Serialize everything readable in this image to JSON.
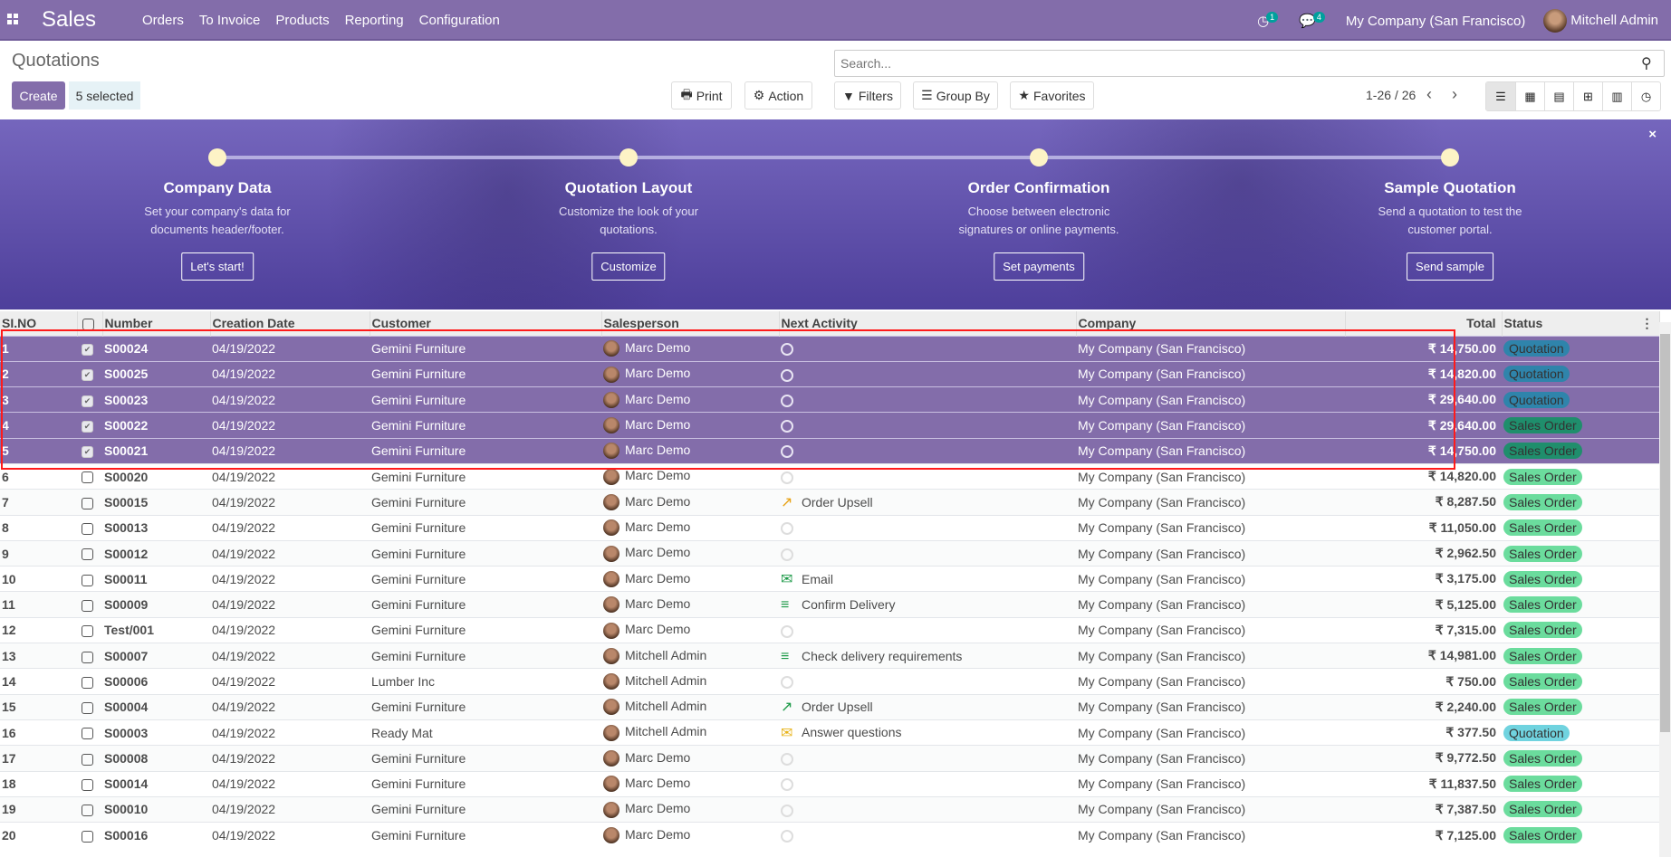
{
  "nav": {
    "app": "Sales",
    "menu": [
      "Orders",
      "To Invoice",
      "Products",
      "Reporting",
      "Configuration"
    ],
    "activity_count": "1",
    "message_count": "4",
    "company": "My Company (San Francisco)",
    "user": "Mitchell Admin",
    "color": "#836daa"
  },
  "control": {
    "title": "Quotations",
    "create": "Create",
    "selected": "5 selected",
    "print": "Print",
    "action": "Action",
    "search_placeholder": "Search...",
    "filters": "Filters",
    "group_by": "Group By",
    "favorites": "Favorites",
    "pager": "1-26 / 26",
    "views": [
      "list-icon",
      "kanban-icon",
      "calendar-icon",
      "pivot-icon",
      "graph-icon",
      "activity-icon"
    ]
  },
  "banner": {
    "close": "×",
    "steps": [
      {
        "title": "Company Data",
        "desc": "Set your company's data for documents header/footer.",
        "button": "Let's start!"
      },
      {
        "title": "Quotation Layout",
        "desc": "Customize the look of your quotations.",
        "button": "Customize"
      },
      {
        "title": "Order Confirmation",
        "desc": "Choose between electronic signatures or online payments.",
        "button": "Set payments"
      },
      {
        "title": "Sample Quotation",
        "desc": "Send a quotation to test the customer portal.",
        "button": "Send sample"
      }
    ]
  },
  "table": {
    "headers": [
      "SI.NO",
      "",
      "Number",
      "Creation Date",
      "Customer",
      "Salesperson",
      "Next Activity",
      "Company",
      "Total",
      "Status"
    ],
    "rows": [
      {
        "no": "1",
        "selected": true,
        "number": "S00024",
        "date": "04/19/2022",
        "customer": "Gemini Furniture",
        "salesperson": "Marc Demo",
        "activity": "",
        "activity_icon": "clock",
        "company": "My Company (San Francisco)",
        "total": "₹ 14,750.00",
        "status": "Quotation"
      },
      {
        "no": "2",
        "selected": true,
        "number": "S00025",
        "date": "04/19/2022",
        "customer": "Gemini Furniture",
        "salesperson": "Marc Demo",
        "activity": "",
        "activity_icon": "clock",
        "company": "My Company (San Francisco)",
        "total": "₹ 14,820.00",
        "status": "Quotation"
      },
      {
        "no": "3",
        "selected": true,
        "number": "S00023",
        "date": "04/19/2022",
        "customer": "Gemini Furniture",
        "salesperson": "Marc Demo",
        "activity": "",
        "activity_icon": "clock",
        "company": "My Company (San Francisco)",
        "total": "₹ 29,640.00",
        "status": "Quotation"
      },
      {
        "no": "4",
        "selected": true,
        "number": "S00022",
        "date": "04/19/2022",
        "customer": "Gemini Furniture",
        "salesperson": "Marc Demo",
        "activity": "",
        "activity_icon": "clock",
        "company": "My Company (San Francisco)",
        "total": "₹ 29,640.00",
        "status": "Sales Order"
      },
      {
        "no": "5",
        "selected": true,
        "number": "S00021",
        "date": "04/19/2022",
        "customer": "Gemini Furniture",
        "salesperson": "Marc Demo",
        "activity": "",
        "activity_icon": "clock",
        "company": "My Company (San Francisco)",
        "total": "₹ 14,750.00",
        "status": "Sales Order"
      },
      {
        "no": "6",
        "selected": false,
        "number": "S00020",
        "date": "04/19/2022",
        "customer": "Gemini Furniture",
        "salesperson": "Marc Demo",
        "activity": "",
        "activity_icon": "clock",
        "company": "My Company (San Francisco)",
        "total": "₹ 14,820.00",
        "status": "Sales Order"
      },
      {
        "no": "7",
        "selected": false,
        "number": "S00015",
        "date": "04/19/2022",
        "customer": "Gemini Furniture",
        "salesperson": "Marc Demo",
        "activity": "Order Upsell",
        "activity_icon": "upsell-orange",
        "company": "My Company (San Francisco)",
        "total": "₹ 8,287.50",
        "status": "Sales Order"
      },
      {
        "no": "8",
        "selected": false,
        "number": "S00013",
        "date": "04/19/2022",
        "customer": "Gemini Furniture",
        "salesperson": "Marc Demo",
        "activity": "",
        "activity_icon": "clock",
        "company": "My Company (San Francisco)",
        "total": "₹ 11,050.00",
        "status": "Sales Order"
      },
      {
        "no": "9",
        "selected": false,
        "number": "S00012",
        "date": "04/19/2022",
        "customer": "Gemini Furniture",
        "salesperson": "Marc Demo",
        "activity": "",
        "activity_icon": "clock",
        "company": "My Company (San Francisco)",
        "total": "₹ 2,962.50",
        "status": "Sales Order"
      },
      {
        "no": "10",
        "selected": false,
        "number": "S00011",
        "date": "04/19/2022",
        "customer": "Gemini Furniture",
        "salesperson": "Marc Demo",
        "activity": "Email",
        "activity_icon": "email-green",
        "company": "My Company (San Francisco)",
        "total": "₹ 3,175.00",
        "status": "Sales Order"
      },
      {
        "no": "11",
        "selected": false,
        "number": "S00009",
        "date": "04/19/2022",
        "customer": "Gemini Furniture",
        "salesperson": "Marc Demo",
        "activity": "Confirm Delivery",
        "activity_icon": "todo-green",
        "company": "My Company (San Francisco)",
        "total": "₹ 5,125.00",
        "status": "Sales Order"
      },
      {
        "no": "12",
        "selected": false,
        "number": "Test/001",
        "date": "04/19/2022",
        "customer": "Gemini Furniture",
        "salesperson": "Marc Demo",
        "activity": "",
        "activity_icon": "clock",
        "company": "My Company (San Francisco)",
        "total": "₹ 7,315.00",
        "status": "Sales Order"
      },
      {
        "no": "13",
        "selected": false,
        "number": "S00007",
        "date": "04/19/2022",
        "customer": "Gemini Furniture",
        "salesperson": "Mitchell Admin",
        "activity": "Check delivery requirements",
        "activity_icon": "todo-green",
        "company": "My Company (San Francisco)",
        "total": "₹ 14,981.00",
        "status": "Sales Order"
      },
      {
        "no": "14",
        "selected": false,
        "number": "S00006",
        "date": "04/19/2022",
        "customer": "Lumber Inc",
        "salesperson": "Mitchell Admin",
        "activity": "",
        "activity_icon": "clock",
        "company": "My Company (San Francisco)",
        "total": "₹ 750.00",
        "status": "Sales Order"
      },
      {
        "no": "15",
        "selected": false,
        "number": "S00004",
        "date": "04/19/2022",
        "customer": "Gemini Furniture",
        "salesperson": "Mitchell Admin",
        "activity": "Order Upsell",
        "activity_icon": "upsell-green",
        "company": "My Company (San Francisco)",
        "total": "₹ 2,240.00",
        "status": "Sales Order"
      },
      {
        "no": "16",
        "selected": false,
        "number": "S00003",
        "date": "04/19/2022",
        "customer": "Ready Mat",
        "salesperson": "Mitchell Admin",
        "activity": "Answer questions",
        "activity_icon": "email-yellow",
        "company": "My Company (San Francisco)",
        "total": "₹ 377.50",
        "status": "Quotation"
      },
      {
        "no": "17",
        "selected": false,
        "number": "S00008",
        "date": "04/19/2022",
        "customer": "Gemini Furniture",
        "salesperson": "Marc Demo",
        "activity": "",
        "activity_icon": "clock",
        "company": "My Company (San Francisco)",
        "total": "₹ 9,772.50",
        "status": "Sales Order"
      },
      {
        "no": "18",
        "selected": false,
        "number": "S00014",
        "date": "04/19/2022",
        "customer": "Gemini Furniture",
        "salesperson": "Marc Demo",
        "activity": "",
        "activity_icon": "clock",
        "company": "My Company (San Francisco)",
        "total": "₹ 11,837.50",
        "status": "Sales Order"
      },
      {
        "no": "19",
        "selected": false,
        "number": "S00010",
        "date": "04/19/2022",
        "customer": "Gemini Furniture",
        "salesperson": "Marc Demo",
        "activity": "",
        "activity_icon": "clock",
        "company": "My Company (San Francisco)",
        "total": "₹ 7,387.50",
        "status": "Sales Order"
      },
      {
        "no": "20",
        "selected": false,
        "number": "S00016",
        "date": "04/19/2022",
        "customer": "Gemini Furniture",
        "salesperson": "Marc Demo",
        "activity": "",
        "activity_icon": "clock",
        "company": "My Company (San Francisco)",
        "total": "₹ 7,125.00",
        "status": "Sales Order"
      }
    ]
  }
}
